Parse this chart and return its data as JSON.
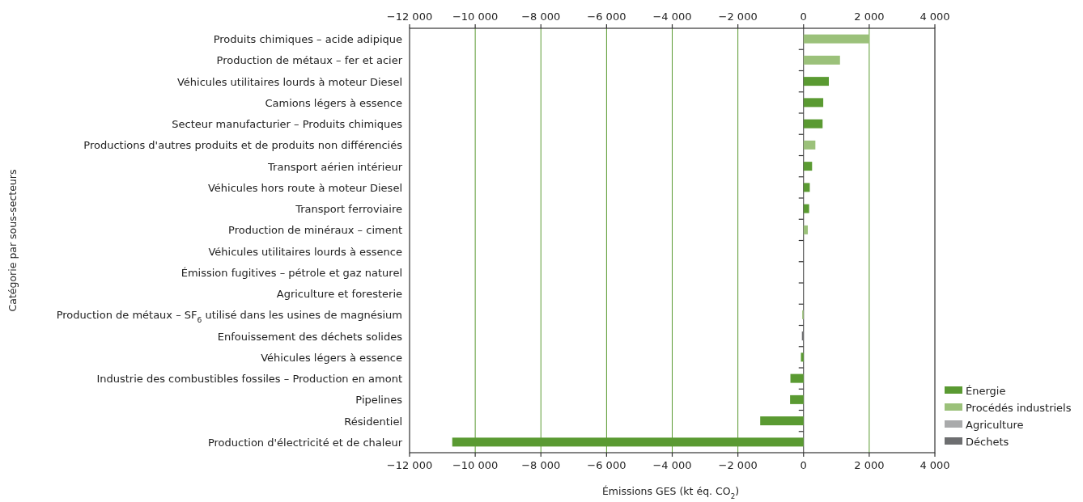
{
  "chart_data": {
    "type": "bar",
    "orientation": "horizontal",
    "xlabel": "Émissions GES (kt éq. CO$_{2}$)",
    "ylabel": "Catégorie par sous-secteurs",
    "categories": [
      "Produits chimiques – acide adipique",
      "Production de métaux – fer et acier",
      "Véhicules utilitaires lourds à moteur Diesel",
      "Camions légers à essence",
      "Secteur manufacturier – Produits chimiques",
      "Productions d'autres produits et de produits non différenciés",
      "Transport aérien intérieur",
      "Véhicules hors route à moteur Diesel",
      "Transport ferroviaire",
      "Production de minéraux – ciment",
      "Véhicules utilitaires lourds à essence",
      "Émission fugitives – pétrole et gaz naturel",
      "Agriculture et foresterie",
      "Production de métaux – SF$_{6}$ utilisé dans les usines de magnésium",
      "Enfouissement des déchets solides",
      "Véhicules légers à essence",
      "Industrie des combustibles fossiles – Production en amont",
      "Pipelines",
      "Résidentiel",
      "Production d'électricité et de chaleur"
    ],
    "series": [
      {
        "name": "Énergie",
        "color": "#5a9a32",
        "values": [
          null,
          null,
          770,
          600,
          580,
          null,
          260,
          190,
          170,
          null,
          null,
          null,
          null,
          null,
          null,
          -80,
          -400,
          -410,
          -1320,
          -10700
        ]
      },
      {
        "name": "Procédés industriels",
        "color": "#9bc17a",
        "values": [
          2000,
          1110,
          null,
          null,
          null,
          360,
          null,
          null,
          null,
          130,
          null,
          null,
          null,
          -40,
          null,
          null,
          null,
          null,
          null,
          null
        ]
      },
      {
        "name": "Agriculture",
        "color": "#a9aaab",
        "values": [
          null,
          null,
          null,
          null,
          null,
          null,
          null,
          null,
          null,
          null,
          null,
          null,
          null,
          null,
          null,
          null,
          null,
          null,
          null,
          null
        ]
      },
      {
        "name": "Déchets",
        "color": "#6d6e70",
        "values": [
          null,
          null,
          null,
          null,
          null,
          null,
          null,
          null,
          null,
          null,
          null,
          null,
          null,
          null,
          -50,
          null,
          null,
          null,
          null,
          null
        ]
      }
    ],
    "xlim": [
      -12000,
      4000
    ],
    "xticks": [
      {
        "value": -12000,
        "label": "−12 000"
      },
      {
        "value": -10000,
        "label": "−10 000"
      },
      {
        "value": -8000,
        "label": "−8 000"
      },
      {
        "value": -6000,
        "label": "−6 000"
      },
      {
        "value": -4000,
        "label": "−4 000"
      },
      {
        "value": -2000,
        "label": "−2 000"
      },
      0,
      {
        "value": 2000,
        "label": "2 000"
      },
      {
        "value": 4000,
        "label": "4 000"
      }
    ],
    "x2lim": [
      -12000,
      4000
    ],
    "x2ticks": [
      {
        "value": -12000,
        "label": "−12 000"
      },
      {
        "value": -10000,
        "label": "−10 000"
      },
      {
        "value": -8000,
        "label": "−8 000"
      },
      {
        "value": -6000,
        "label": "−6 000"
      },
      {
        "value": -4000,
        "label": "−4 000"
      },
      {
        "value": -2000,
        "label": "−2 000"
      },
      0,
      {
        "value": 2000,
        "label": "2 000"
      },
      {
        "value": 4000,
        "label": "4 000"
      }
    ],
    "grid": "x",
    "legend": "bottom right"
  }
}
